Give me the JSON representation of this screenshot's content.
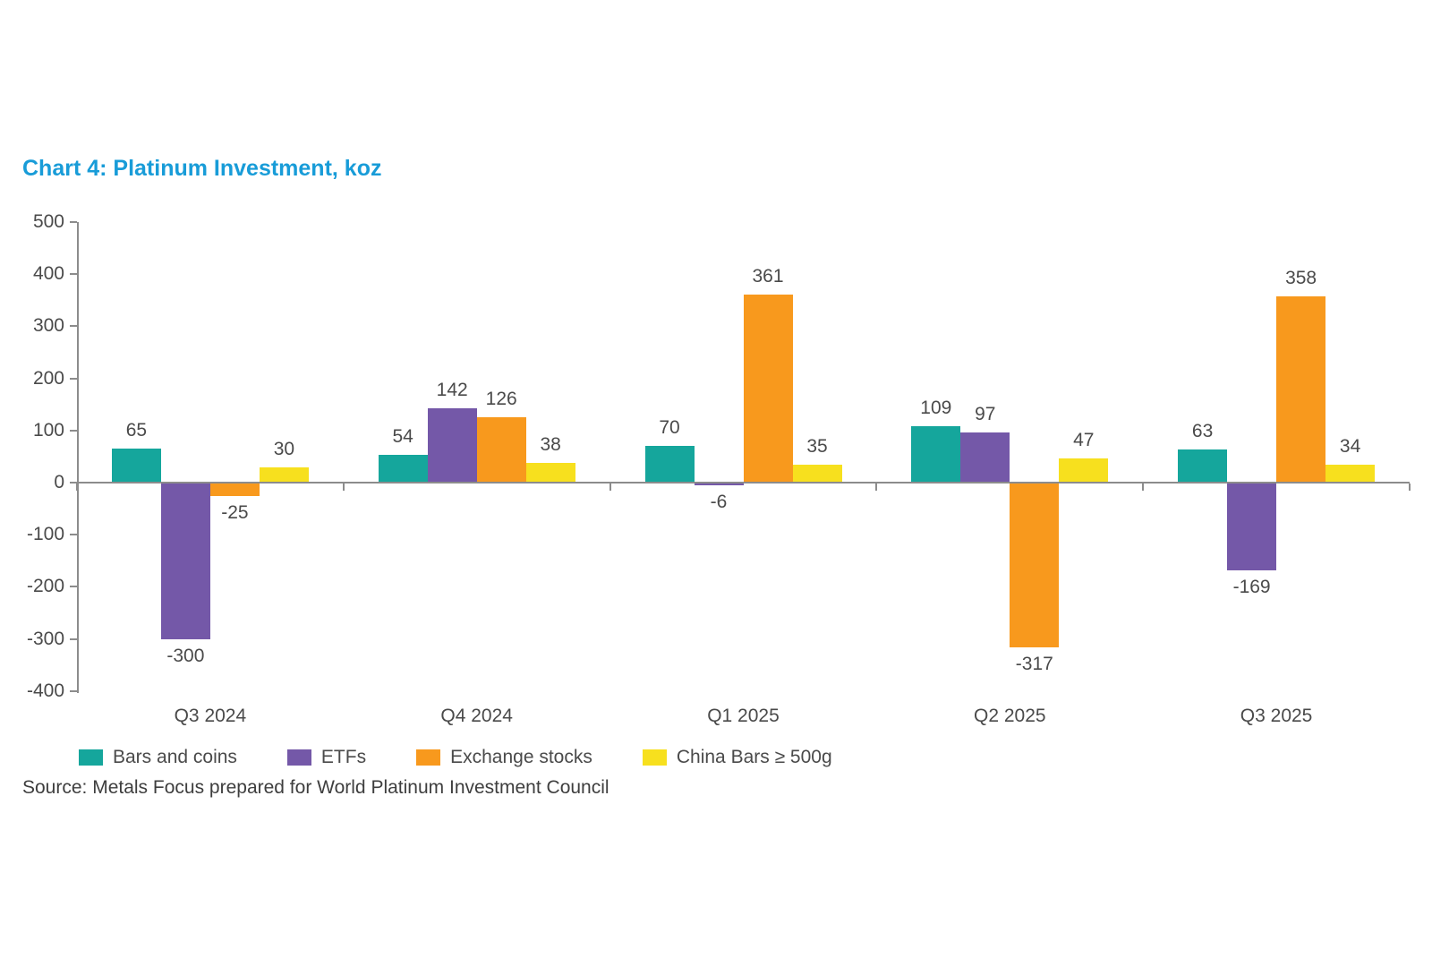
{
  "title": "Chart 4: Platinum Investment, koz",
  "source": "Source: Metals Focus prepared for World Platinum Investment Council",
  "colors": {
    "title": "#189CD8",
    "axis_line": "#8C8C8C",
    "label_text": "#4A4A4A"
  },
  "chart_data": {
    "type": "bar",
    "title": "Chart 4: Platinum Investment, koz",
    "categories": [
      "Q3 2024",
      "Q4 2024",
      "Q1 2025",
      "Q2 2025",
      "Q3 2025"
    ],
    "series": [
      {
        "name": "Bars and coins",
        "color": "#15A69C",
        "values": [
          65,
          54,
          70,
          109,
          63
        ]
      },
      {
        "name": "ETFs",
        "color": "#7458A8",
        "values": [
          -300,
          142,
          -6,
          97,
          -169
        ]
      },
      {
        "name": "Exchange stocks",
        "color": "#F8991D",
        "values": [
          -25,
          126,
          361,
          -317,
          358
        ]
      },
      {
        "name": "China Bars ≥ 500g",
        "color": "#F7E01E",
        "values": [
          30,
          38,
          35,
          47,
          34
        ]
      }
    ],
    "ylim": [
      -400,
      500
    ],
    "yticks": [
      500,
      400,
      300,
      200,
      100,
      0,
      -100,
      -200,
      -300,
      -400
    ],
    "xlabel": "",
    "ylabel": "",
    "grid": false,
    "data_labels": true,
    "legend_position": "bottom"
  }
}
